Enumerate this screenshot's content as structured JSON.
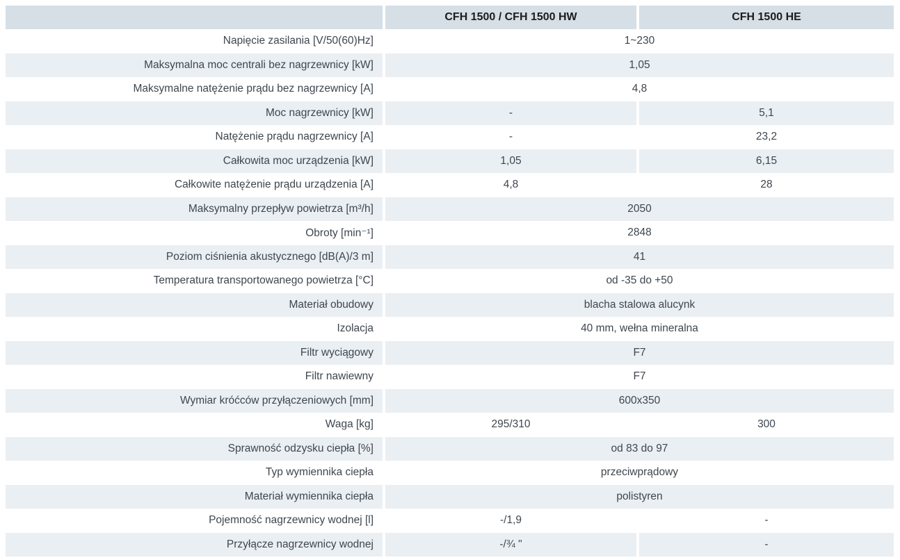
{
  "colors": {
    "header-bg": "#d6dfe6",
    "row-shade": "#eaeff3",
    "page-bg": "#ffffff",
    "text": "#3e464e",
    "header-text": "#1c1c1c"
  },
  "table": {
    "header": {
      "label_col": "",
      "col1": "CFH 1500 / CFH 1500 HW",
      "col2": "CFH 1500 HE"
    },
    "rows": [
      {
        "label": "Napięcie zasilania [V/50(60)Hz]",
        "merged": "1~230"
      },
      {
        "label": "Maksymalna moc centrali bez nagrzewnicy [kW]",
        "merged": "1,05"
      },
      {
        "label": "Maksymalne natężenie prądu bez nagrzewnicy [A]",
        "merged": "4,8"
      },
      {
        "label": "Moc nagrzewnicy [kW]",
        "col1": "-",
        "col2": "5,1"
      },
      {
        "label": "Natężenie prądu nagrzewnicy [A]",
        "col1": "-",
        "col2": "23,2"
      },
      {
        "label": "Całkowita moc urządzenia [kW]",
        "col1": "1,05",
        "col2": "6,15"
      },
      {
        "label": "Całkowite natężenie prądu urządzenia [A]",
        "col1": "4,8",
        "col2": "28"
      },
      {
        "label": "Maksymalny przepływ powietrza [m³/h]",
        "merged": "2050"
      },
      {
        "label": "Obroty [min⁻¹]",
        "merged": "2848"
      },
      {
        "label": "Poziom ciśnienia akustycznego [dB(A)/3 m]",
        "merged": "41"
      },
      {
        "label": "Temperatura transportowanego powietrza [°C]",
        "merged": "od -35 do +50"
      },
      {
        "label": "Materiał obudowy",
        "merged": "blacha stalowa alucynk"
      },
      {
        "label": "Izolacja",
        "merged": "40 mm, wełna mineralna"
      },
      {
        "label": "Filtr wyciągowy",
        "merged": "F7"
      },
      {
        "label": "Filtr nawiewny",
        "merged": "F7"
      },
      {
        "label": "Wymiar króćców przyłączeniowych [mm]",
        "merged": "600x350"
      },
      {
        "label": "Waga [kg]",
        "col1": "295/310",
        "col2": "300"
      },
      {
        "label": "Sprawność odzysku ciepła [%]",
        "merged": "od 83 do 97"
      },
      {
        "label": "Typ wymiennika ciepła",
        "merged": "przeciwprądowy"
      },
      {
        "label": "Materiał wymiennika ciepła",
        "merged": "polistyren"
      },
      {
        "label": "Pojemność nagrzewnicy wodnej [l]",
        "col1": "-/1,9",
        "col2": "-"
      },
      {
        "label": "Przyłącze nagrzewnicy wodnej",
        "col1": "-/¾ \"",
        "col2": "-"
      }
    ]
  }
}
